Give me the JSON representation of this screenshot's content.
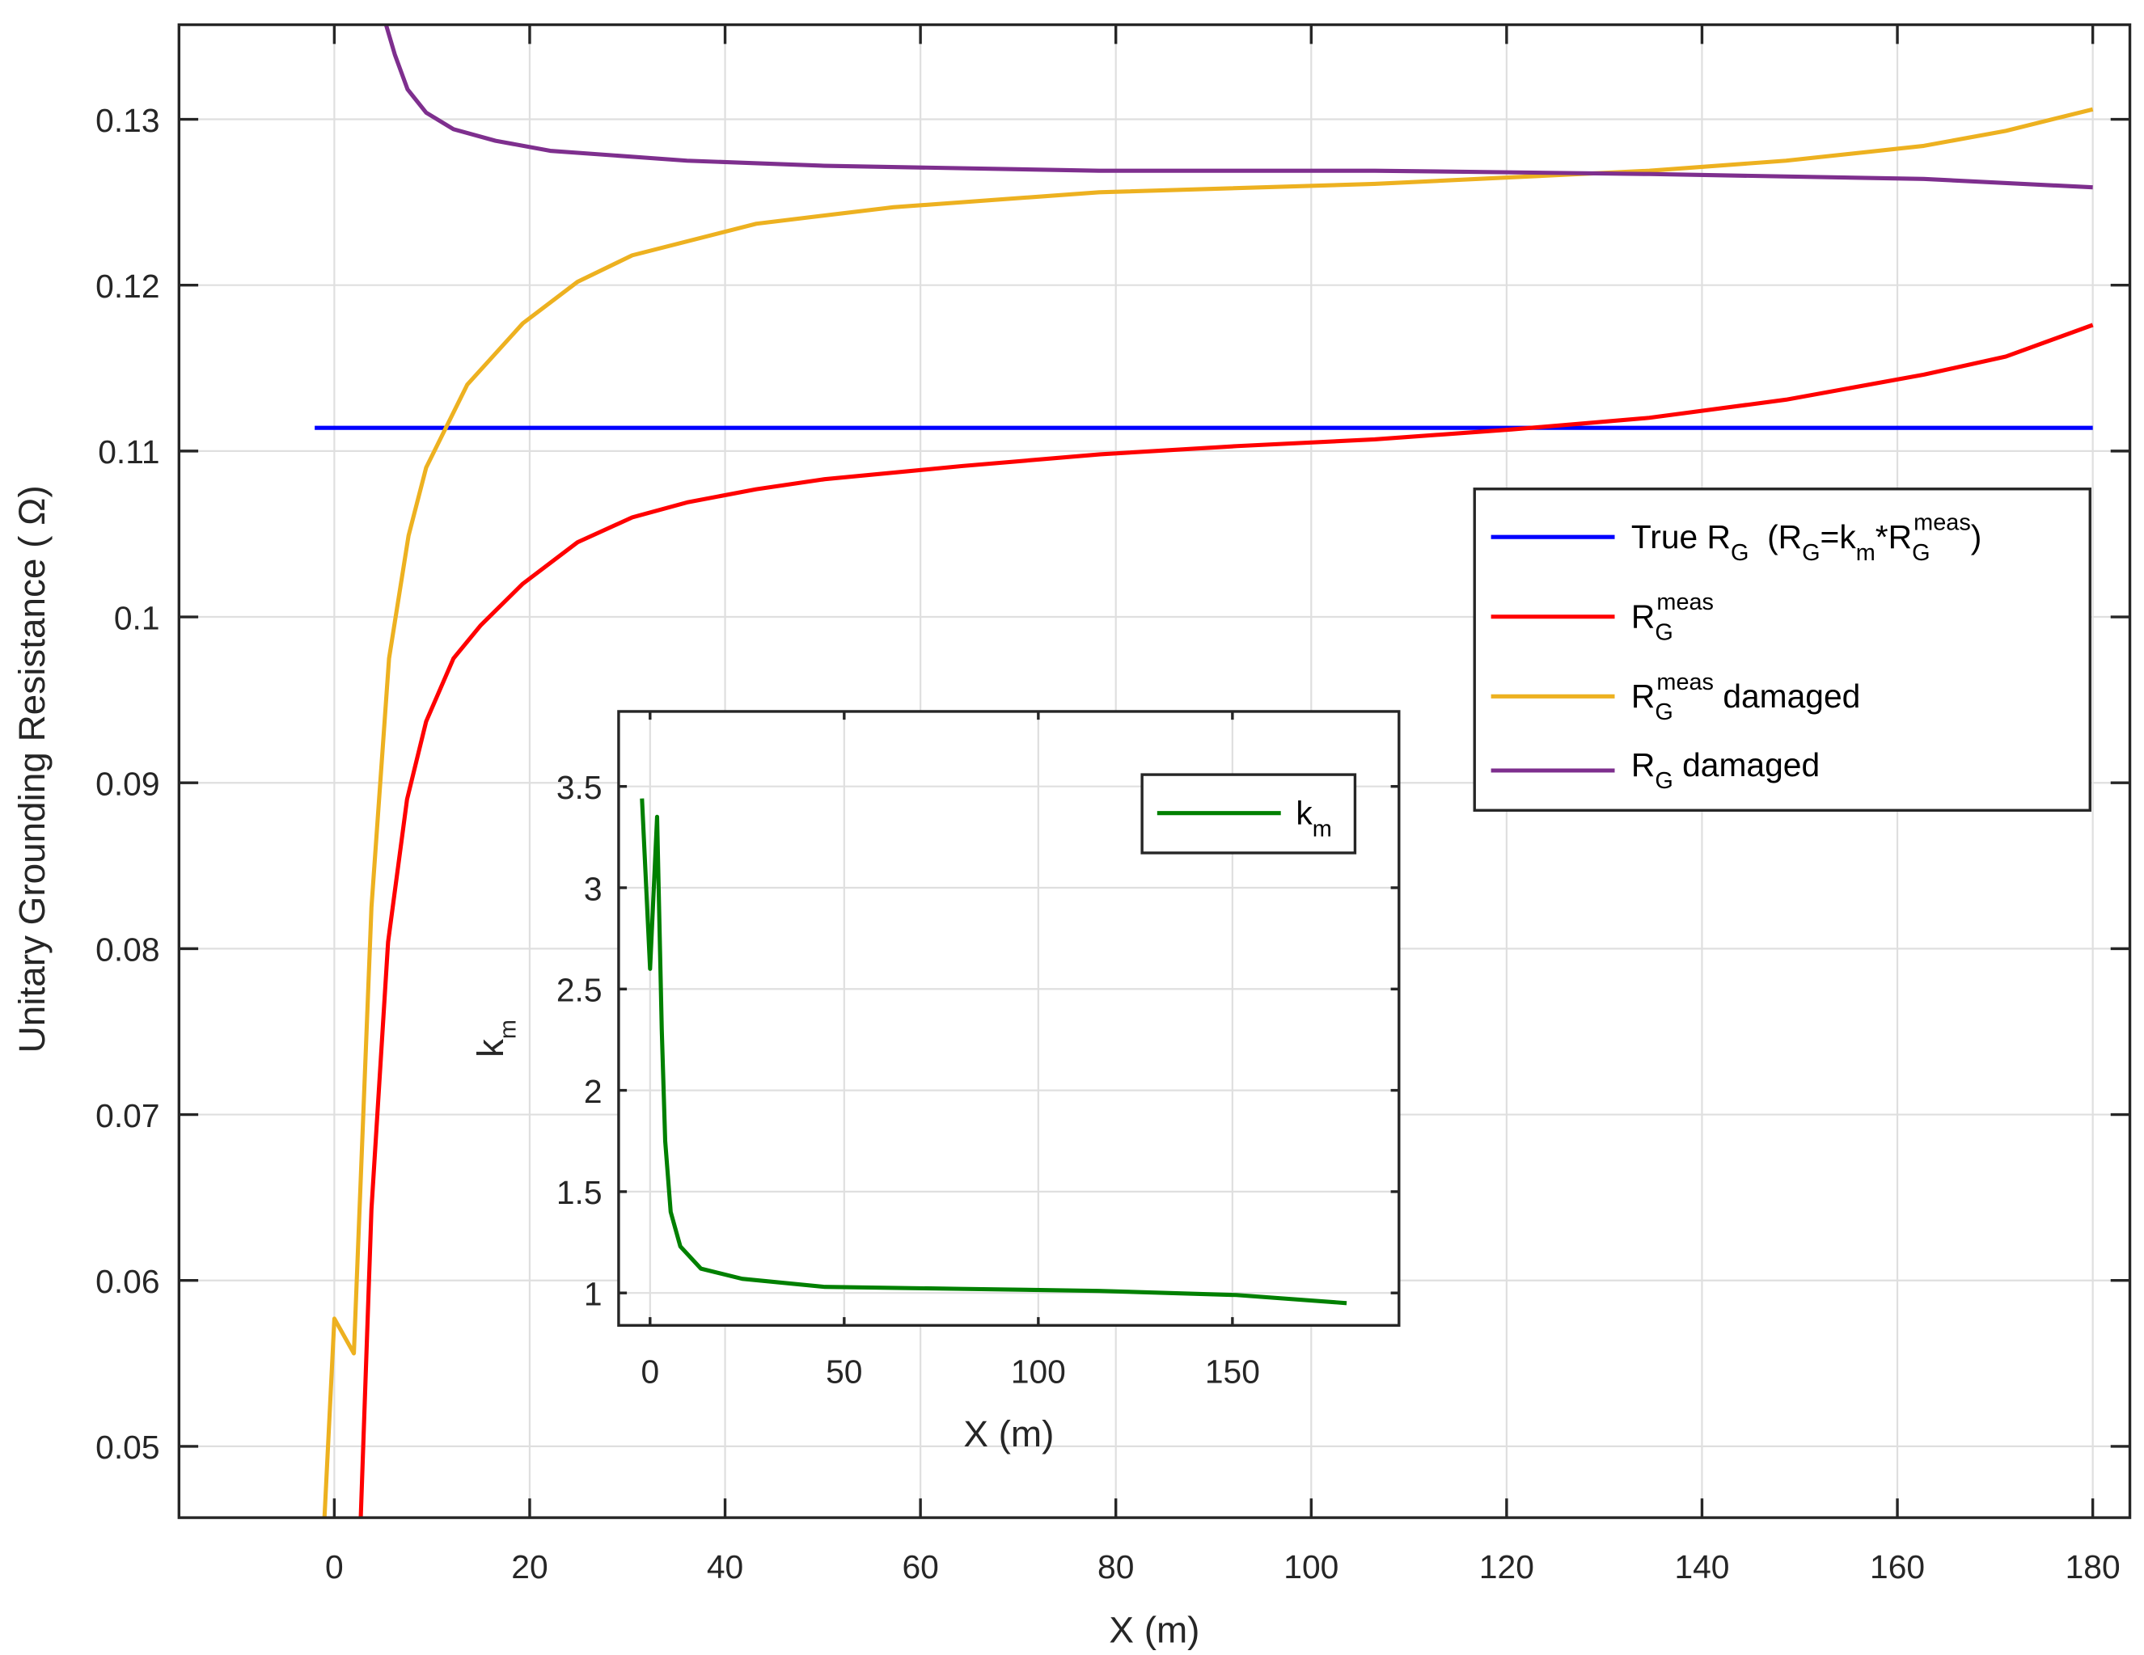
{
  "chart_data": [
    {
      "id": "main",
      "type": "line",
      "title": "",
      "xlabel": "X (m)",
      "ylabel": "Unitary Grounding Resistance ( Ω)",
      "xlim": [
        -15.9,
        183.8
      ],
      "ylim": [
        0.0457,
        0.1357
      ],
      "xticks": [
        0,
        20,
        40,
        60,
        80,
        100,
        120,
        140,
        160,
        180
      ],
      "yticks": [
        0.05,
        0.06,
        0.07,
        0.08,
        0.09,
        0.1,
        0.11,
        0.12,
        0.13
      ],
      "ytick_labels": [
        "0.05",
        "0.06",
        "0.07",
        "0.08",
        "0.09",
        "0.1",
        "0.11",
        "0.12",
        "0.13"
      ],
      "grid": true,
      "legend_position": "northeast-inside",
      "series": [
        {
          "name": "True R_G (R_G=k_m*R_G^meas)",
          "color": "#0000ff",
          "x": [
            -2,
            0,
            20,
            60,
            100,
            140,
            180
          ],
          "y": [
            0.1114,
            0.1114,
            0.1114,
            0.1114,
            0.1114,
            0.1114,
            0.1114
          ]
        },
        {
          "name": "R_G^meas",
          "color": "#ff0000",
          "x": [
            2.7,
            3.8,
            5.5,
            7.45,
            9.4,
            12.2,
            15.0,
            19.3,
            24.9,
            30.5,
            36.1,
            43.2,
            50.2,
            64.3,
            78.4,
            92.4,
            106.5,
            120.5,
            134.6,
            148.6,
            162.7,
            171.1,
            180
          ],
          "y": [
            0.0457,
            0.0643,
            0.0804,
            0.089,
            0.0937,
            0.0975,
            0.0995,
            0.102,
            0.1045,
            0.106,
            0.1069,
            0.1077,
            0.1083,
            0.1091,
            0.1098,
            0.1103,
            0.1107,
            0.1113,
            0.112,
            0.1131,
            0.1146,
            0.1157,
            0.1176
          ]
        },
        {
          "name": "R_G^meas damaged",
          "color": "#edb120",
          "x": [
            -1,
            0,
            2,
            3.8,
            5.6,
            7.6,
            9.4,
            13.6,
            19.3,
            24.9,
            30.5,
            43.2,
            57.2,
            78.3,
            106.5,
            120.5,
            134.6,
            148.6,
            162.7,
            171.1,
            180
          ],
          "y": [
            0.0457,
            0.0577,
            0.0556,
            0.0825,
            0.0975,
            0.1049,
            0.109,
            0.114,
            0.1177,
            0.1202,
            0.1218,
            0.1237,
            0.1247,
            0.1256,
            0.1261,
            0.1265,
            0.1269,
            0.1275,
            0.1284,
            0.1293,
            0.1306
          ]
        },
        {
          "name": "R_G damaged",
          "color": "#7e2f8e",
          "x": [
            5.3,
            6.2,
            7.5,
            9.4,
            12.2,
            16.5,
            22.1,
            36.1,
            50.2,
            78.3,
            106.5,
            134.6,
            162.7,
            180
          ],
          "y": [
            0.1357,
            0.1339,
            0.1318,
            0.1304,
            0.1294,
            0.1287,
            0.1281,
            0.1275,
            0.1272,
            0.1269,
            0.1269,
            0.1267,
            0.1264,
            0.1259
          ]
        }
      ]
    },
    {
      "id": "inset",
      "type": "line",
      "title": "",
      "xlabel": "X (m)",
      "ylabel": "k_m",
      "xlim": [
        -8.1,
        192.9
      ],
      "ylim": [
        0.84,
        3.87
      ],
      "xticks": [
        0,
        50,
        100,
        150
      ],
      "yticks": [
        1,
        1.5,
        2,
        2.5,
        3,
        3.5
      ],
      "ytick_labels": [
        "1",
        "1.5",
        "2",
        "2.5",
        "3",
        "3.5"
      ],
      "grid": true,
      "legend_position": "northeast-inside",
      "series": [
        {
          "name": "k_m",
          "color": "#008000",
          "x": [
            -2.1,
            0,
            1.8,
            3.0,
            3.9,
            5.3,
            7.8,
            13.1,
            23.7,
            45,
            80,
            115.7,
            151,
            179.4
          ],
          "y": [
            3.44,
            2.6,
            3.35,
            2.3,
            1.75,
            1.4,
            1.23,
            1.12,
            1.07,
            1.03,
            1.02,
            1.01,
            0.99,
            0.95
          ]
        }
      ]
    }
  ],
  "legend_main": {
    "true_rg": {
      "r": "True R",
      "sub": "G",
      "paren_open": "  (R",
      "sub2": "G",
      "eq": "=k",
      "sub3": "m",
      "star": "*R",
      "sub4": "G",
      "sup4": "meas",
      "paren_close": ")"
    },
    "rg_meas": {
      "r": "R",
      "sub": "G",
      "sup": "meas"
    },
    "rg_meas_damaged": {
      "r": "R",
      "sub": "G",
      "sup": "meas",
      "suffix": " damaged"
    },
    "rg_damaged": {
      "r": "R",
      "sub": "G",
      "suffix": " damaged"
    }
  },
  "legend_inset": {
    "k": "k",
    "sub": "m"
  },
  "labels": {
    "main_x": "X (m)",
    "main_y": "Unitary Grounding Resistance ( Ω)",
    "inset_x": "X (m)",
    "inset_y_k": "k",
    "inset_y_sub": "m"
  }
}
